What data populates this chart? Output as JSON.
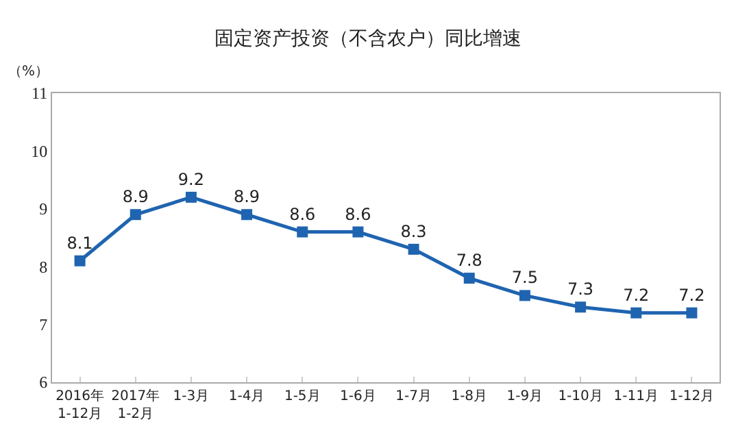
{
  "chart_data": {
    "type": "line",
    "title": "固定资产投资（不含农户）同比增速",
    "ylabel": "（%）",
    "categories": [
      "2016年\n1-12月",
      "2017年\n1-2月",
      "1-3月",
      "1-4月",
      "1-5月",
      "1-6月",
      "1-7月",
      "1-8月",
      "1-9月",
      "1-10月",
      "1-11月",
      "1-12月"
    ],
    "series": [
      {
        "color": "#1f64b0",
        "values": [
          8.1,
          8.9,
          9.2,
          8.9,
          8.6,
          8.6,
          8.3,
          7.8,
          7.5,
          7.3,
          7.2,
          7.2
        ]
      }
    ],
    "ylim": [
      6,
      11
    ],
    "yticks": [
      6,
      7,
      8,
      9,
      10,
      11
    ],
    "grid": false,
    "marker": "square",
    "line_style": "solid",
    "data_labels": true
  }
}
